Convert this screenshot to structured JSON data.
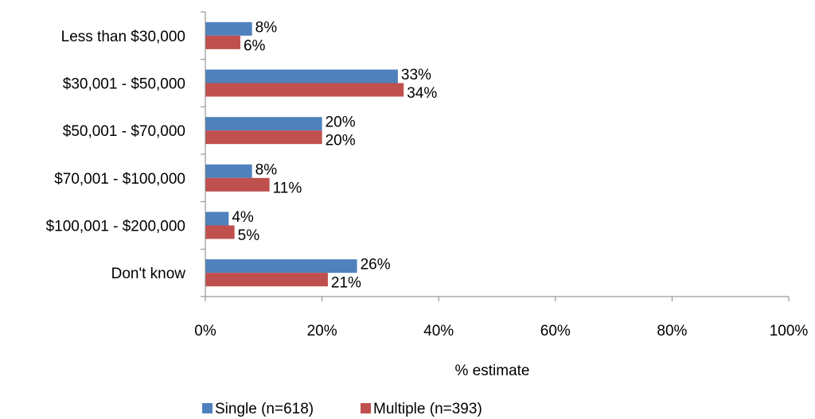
{
  "chart_data": {
    "type": "bar",
    "orientation": "horizontal",
    "categories": [
      "Less than $30,000",
      "$30,001 - $50,000",
      "$50,001 - $70,000",
      "$70,001 - $100,000",
      "$100,001 - $200,000",
      "Don't know"
    ],
    "series": [
      {
        "name": "Single (n=618)",
        "color": "#4F81BD",
        "values": [
          8,
          33,
          20,
          8,
          4,
          26
        ],
        "labels": [
          "8%",
          "33%",
          "20%",
          "8%",
          "4%",
          "26%"
        ]
      },
      {
        "name": "Multiple (n=393)",
        "color": "#C0504D",
        "values": [
          6,
          34,
          20,
          11,
          5,
          21
        ],
        "labels": [
          "6%",
          "34%",
          "20%",
          "11%",
          "5%",
          "21%"
        ]
      }
    ],
    "xlabel": "% estimate",
    "xlim": [
      0,
      100
    ],
    "xticks": [
      "0%",
      "20%",
      "40%",
      "60%",
      "80%",
      "100%"
    ],
    "grid": false,
    "legend_position": "bottom"
  }
}
